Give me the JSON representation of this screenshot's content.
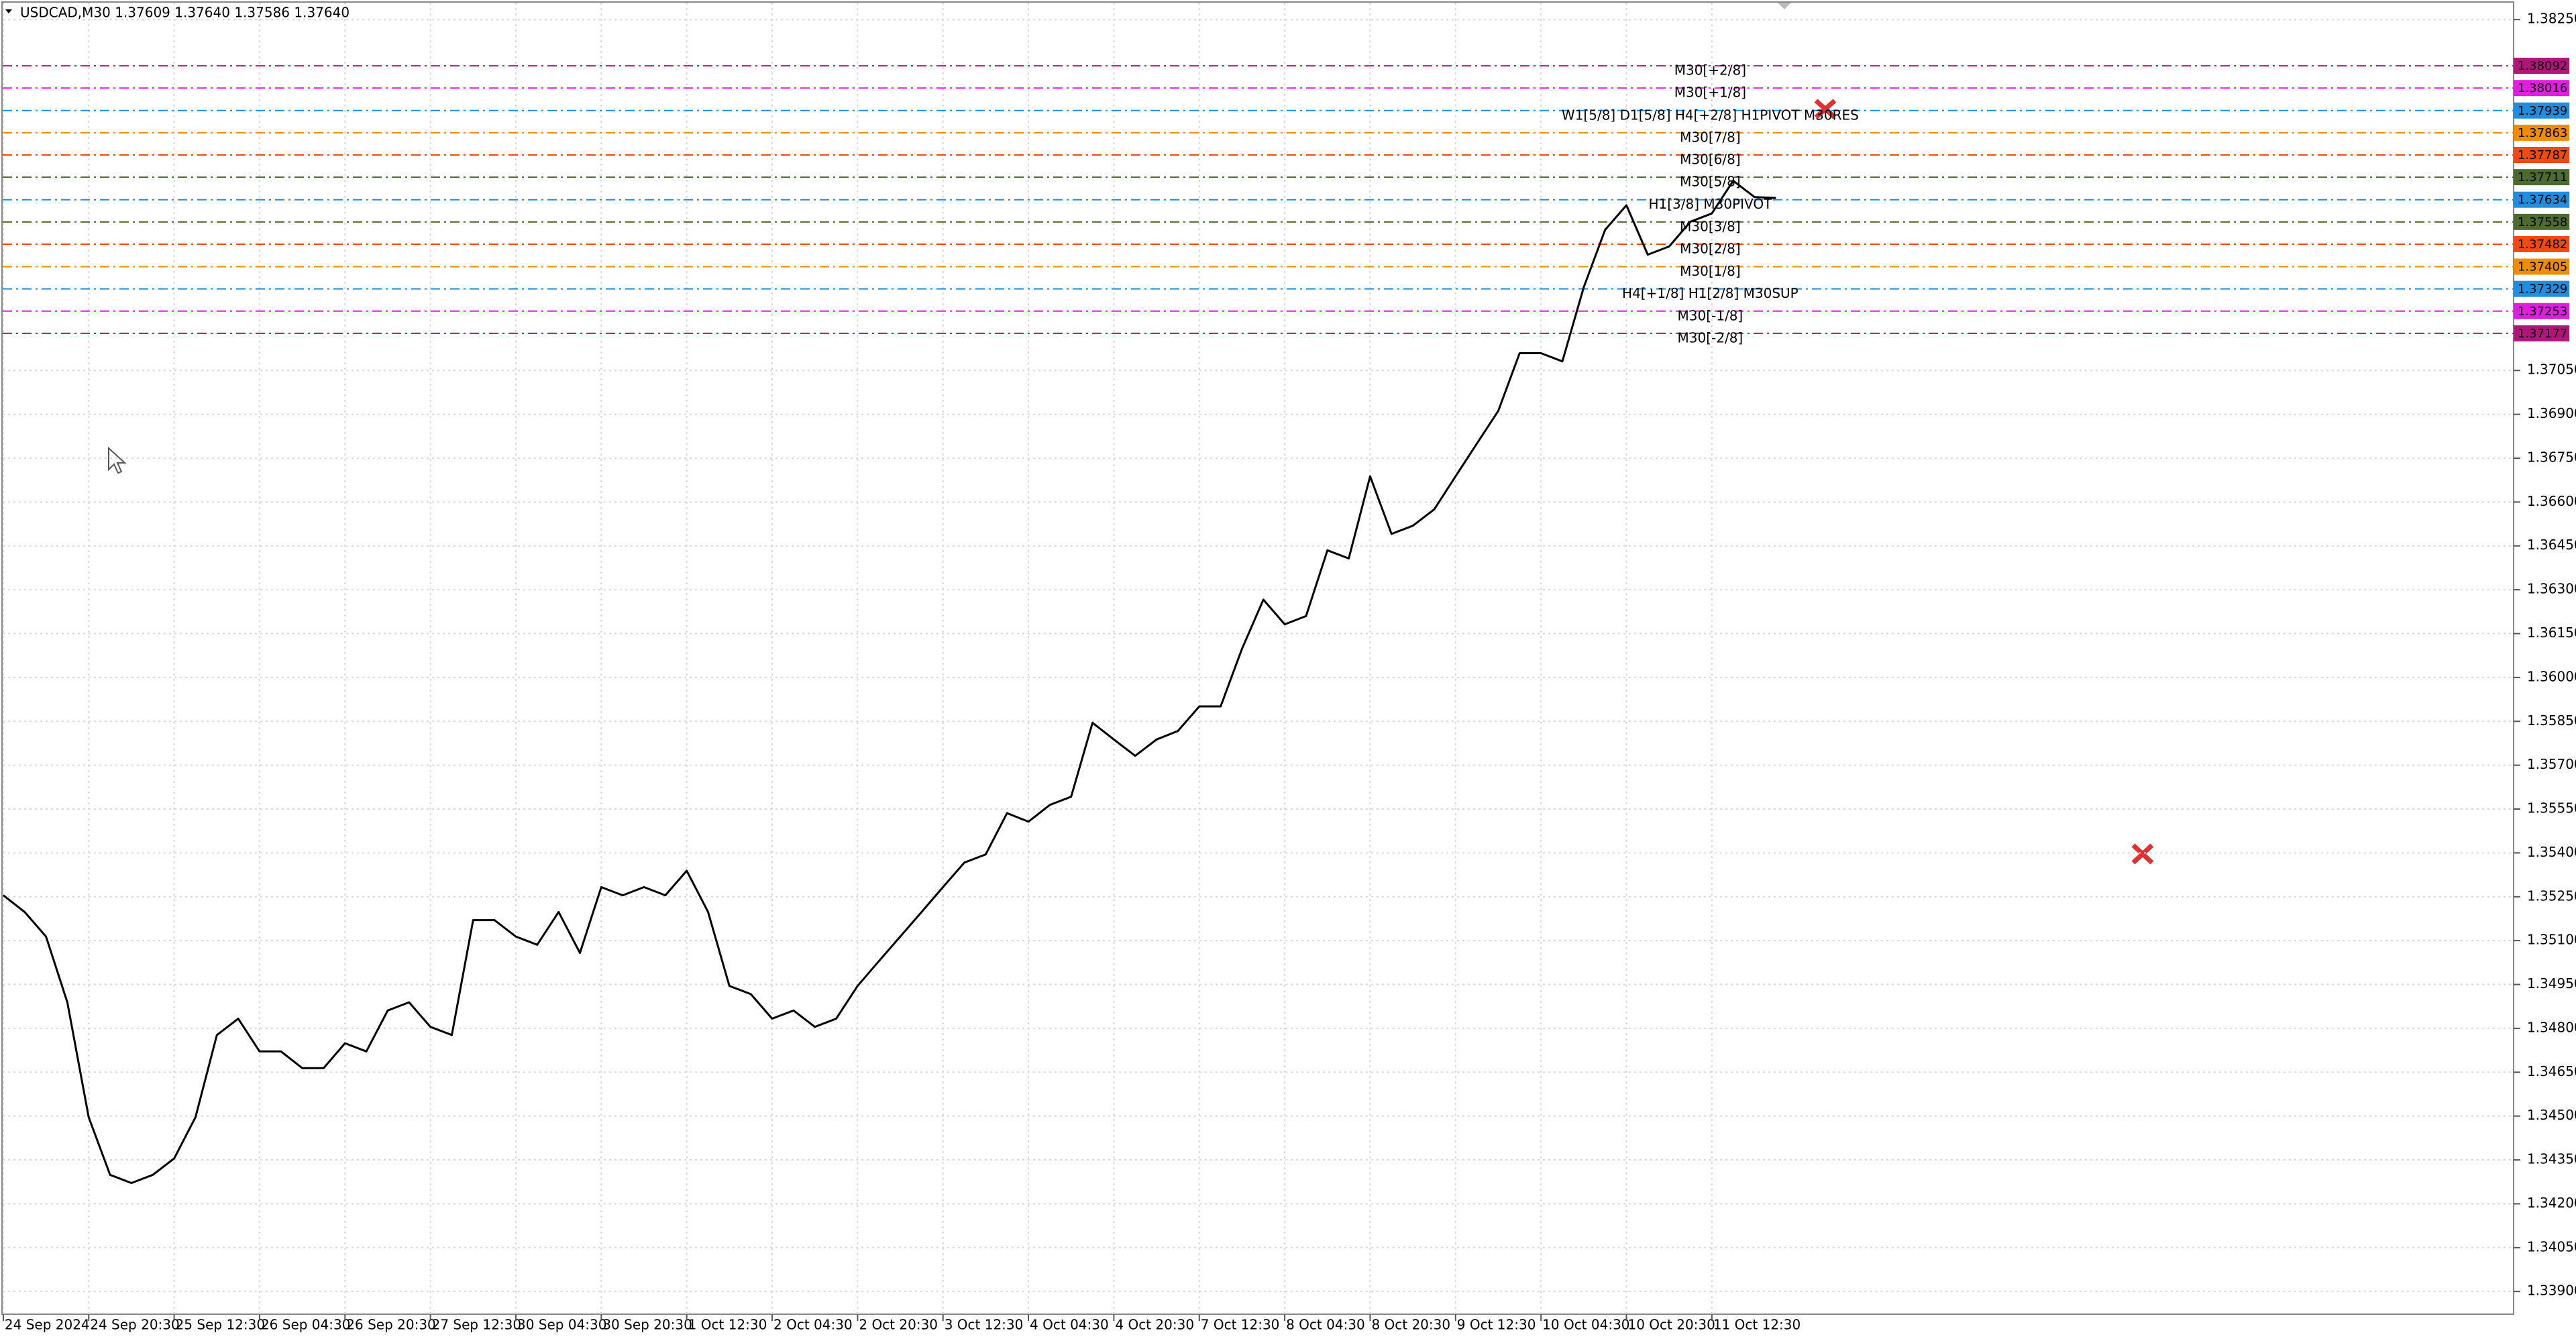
{
  "chart_data": {
    "type": "line",
    "title": "USDCAD,M30  1.37609 1.37640 1.37586 1.37640",
    "color": "#000000",
    "grid": true,
    "categories": [
      "24 Sep 2024",
      null,
      null,
      null,
      "24 Sep 20:30",
      null,
      null,
      null,
      "25 Sep 12:30",
      null,
      null,
      null,
      "26 Sep 04:30",
      null,
      null,
      null,
      "26 Sep 20:30",
      null,
      null,
      null,
      "27 Sep 12:30",
      null,
      null,
      null,
      "30 Sep 04:30",
      null,
      null,
      null,
      "30 Sep 20:30",
      null,
      null,
      null,
      "1 Oct 12:30",
      null,
      null,
      null,
      "2 Oct 04:30",
      null,
      null,
      null,
      "2 Oct 20:30",
      null,
      null,
      null,
      "3 Oct 12:30",
      null,
      null,
      null,
      "4 Oct 04:30",
      null,
      null,
      null,
      "4 Oct 20:30",
      null,
      null,
      null,
      "7 Oct 12:30",
      null,
      null,
      null,
      "8 Oct 04:30",
      null,
      null,
      null,
      "8 Oct 20:30",
      null,
      null,
      null,
      "9 Oct 12:30",
      null,
      null,
      null,
      "10 Oct 04:30",
      null,
      null,
      null,
      "10 Oct 20:30",
      null,
      null,
      null,
      "11 Oct 12:30",
      null,
      null,
      null
    ],
    "values": [
      1.35255,
      1.35198,
      1.35114,
      1.34889,
      1.34496,
      1.34299,
      1.34271,
      1.34299,
      1.34355,
      1.34496,
      1.34777,
      1.34833,
      1.34721,
      1.34721,
      1.34664,
      1.34664,
      1.34749,
      1.34721,
      1.34861,
      1.34889,
      1.34805,
      1.34777,
      1.3517,
      1.3517,
      1.35114,
      1.35086,
      1.35198,
      1.35058,
      1.35283,
      1.35255,
      1.35283,
      1.35255,
      1.35339,
      1.35198,
      1.34945,
      1.34917,
      1.34833,
      1.34861,
      1.34805,
      1.34833,
      1.34945,
      1.3503,
      1.35114,
      1.35198,
      1.35283,
      1.35367,
      1.35395,
      1.35536,
      1.35507,
      1.35564,
      1.35592,
      1.35845,
      1.35788,
      1.35732,
      1.35788,
      1.35817,
      1.35901,
      1.35901,
      1.36098,
      1.36266,
      1.36182,
      1.3621,
      1.36435,
      1.36407,
      1.36688,
      1.36491,
      1.36519,
      1.36575,
      1.36688,
      1.368,
      1.36912,
      1.37109,
      1.37109,
      1.37081,
      1.37334,
      1.37531,
      1.37615,
      1.37446,
      1.37474,
      1.37559,
      1.37587,
      1.37699,
      1.37643,
      1.3764
    ],
    "ylim": [
      1.33822,
      1.38317
    ],
    "yticks": [
      {
        "value": 1.3825,
        "label": "1.38250"
      },
      {
        "value": 1.3705,
        "label": "1.37050"
      },
      {
        "value": 1.369,
        "label": "1.36900"
      },
      {
        "value": 1.3675,
        "label": "1.36750"
      },
      {
        "value": 1.366,
        "label": "1.36600"
      },
      {
        "value": 1.3645,
        "label": "1.36450"
      },
      {
        "value": 1.363,
        "label": "1.36300"
      },
      {
        "value": 1.3615,
        "label": "1.36150"
      },
      {
        "value": 1.36,
        "label": "1.36000"
      },
      {
        "value": 1.3585,
        "label": "1.35850"
      },
      {
        "value": 1.357,
        "label": "1.35700"
      },
      {
        "value": 1.3555,
        "label": "1.35550"
      },
      {
        "value": 1.354,
        "label": "1.35400"
      },
      {
        "value": 1.3525,
        "label": "1.35250"
      },
      {
        "value": 1.351,
        "label": "1.35100"
      },
      {
        "value": 1.3495,
        "label": "1.34950"
      },
      {
        "value": 1.348,
        "label": "1.34800"
      },
      {
        "value": 1.3465,
        "label": "1.34650"
      },
      {
        "value": 1.345,
        "label": "1.34500"
      },
      {
        "value": 1.3435,
        "label": "1.34350"
      },
      {
        "value": 1.342,
        "label": "1.34200"
      },
      {
        "value": 1.3405,
        "label": "1.34050"
      },
      {
        "value": 1.339,
        "label": "1.33900"
      }
    ],
    "levels": [
      {
        "price": 1.38092,
        "text": "M30[+2/8]",
        "color": "#b0157a"
      },
      {
        "price": 1.38016,
        "text": "M30[+1/8]",
        "color": "#e01ee0"
      },
      {
        "price": 1.37939,
        "text": "W1[5/8] D1[5/8] H4[+2/8] H1PIVOT M30RES",
        "color": "#1e8ee0"
      },
      {
        "price": 1.37863,
        "text": "M30[7/8]",
        "color": "#f08c00"
      },
      {
        "price": 1.37787,
        "text": "M30[6/8]",
        "color": "#f04a10"
      },
      {
        "price": 1.37711,
        "text": "M30[5/8]",
        "color": "#4e6b2f"
      },
      {
        "price": 1.37634,
        "text": "H1[3/8] M30PIVOT",
        "color": "#1e8ee0"
      },
      {
        "price": 1.37558,
        "text": "M30[3/8]",
        "color": "#4e6b2f"
      },
      {
        "price": 1.37482,
        "text": "M30[2/8]",
        "color": "#f04a10"
      },
      {
        "price": 1.37405,
        "text": "M30[1/8]",
        "color": "#f08c00"
      },
      {
        "price": 1.37329,
        "text": "H4[+1/8] H1[2/8] M30SUP",
        "color": "#1e8ee0"
      },
      {
        "price": 1.37253,
        "text": "M30[-1/8]",
        "color": "#e01ee0"
      },
      {
        "price": 1.37177,
        "text": "M30[-2/8]",
        "color": "#b0157a"
      }
    ]
  }
}
